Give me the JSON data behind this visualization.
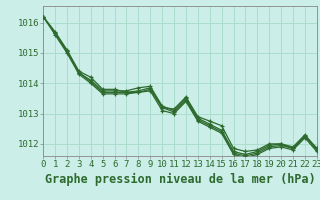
{
  "title": "Graphe pression niveau de la mer (hPa)",
  "background_color": "#cceee8",
  "grid_color": "#aaddcc",
  "line_color": "#2d6a2d",
  "series": [
    [
      1016.2,
      1015.7,
      1015.1,
      1014.4,
      1014.2,
      1013.8,
      1013.8,
      1013.7,
      1013.7,
      1013.8,
      1013.2,
      1013.15,
      1013.55,
      1012.9,
      1012.75,
      1012.6,
      1011.85,
      1011.75,
      1011.8,
      1012.0,
      1012.0,
      1011.85,
      1012.25,
      1011.85
    ],
    [
      1016.2,
      1015.65,
      1015.05,
      1014.35,
      1014.1,
      1013.75,
      1013.75,
      1013.75,
      1013.85,
      1013.9,
      1013.25,
      1013.1,
      1013.5,
      1012.85,
      1012.65,
      1012.45,
      1011.75,
      1011.65,
      1011.75,
      1011.95,
      1012.0,
      1011.9,
      1012.3,
      1011.85
    ],
    [
      1016.2,
      1015.65,
      1015.05,
      1014.35,
      1014.05,
      1013.7,
      1013.7,
      1013.7,
      1013.75,
      1013.85,
      1013.2,
      1013.05,
      1013.45,
      1012.8,
      1012.6,
      1012.4,
      1011.7,
      1011.6,
      1011.7,
      1011.9,
      1011.95,
      1011.85,
      1012.25,
      1011.8
    ],
    [
      1016.2,
      1015.6,
      1015.0,
      1014.3,
      1014.0,
      1013.65,
      1013.65,
      1013.65,
      1013.7,
      1013.75,
      1013.1,
      1013.0,
      1013.4,
      1012.75,
      1012.55,
      1012.35,
      1011.65,
      1011.55,
      1011.65,
      1011.85,
      1011.9,
      1011.8,
      1012.2,
      1011.75
    ]
  ],
  "xlim": [
    0,
    23
  ],
  "ylim": [
    1011.6,
    1016.55
  ],
  "yticks": [
    1012,
    1013,
    1014,
    1015,
    1016
  ],
  "xticks": [
    0,
    1,
    2,
    3,
    4,
    5,
    6,
    7,
    8,
    9,
    10,
    11,
    12,
    13,
    14,
    15,
    16,
    17,
    18,
    19,
    20,
    21,
    22,
    23
  ],
  "xtick_labels": [
    "0",
    "1",
    "2",
    "3",
    "4",
    "5",
    "6",
    "7",
    "8",
    "9",
    "10",
    "11",
    "12",
    "13",
    "14",
    "15",
    "16",
    "17",
    "18",
    "19",
    "20",
    "21",
    "22",
    "23"
  ],
  "title_fontsize": 8.5,
  "tick_fontsize": 6.5
}
